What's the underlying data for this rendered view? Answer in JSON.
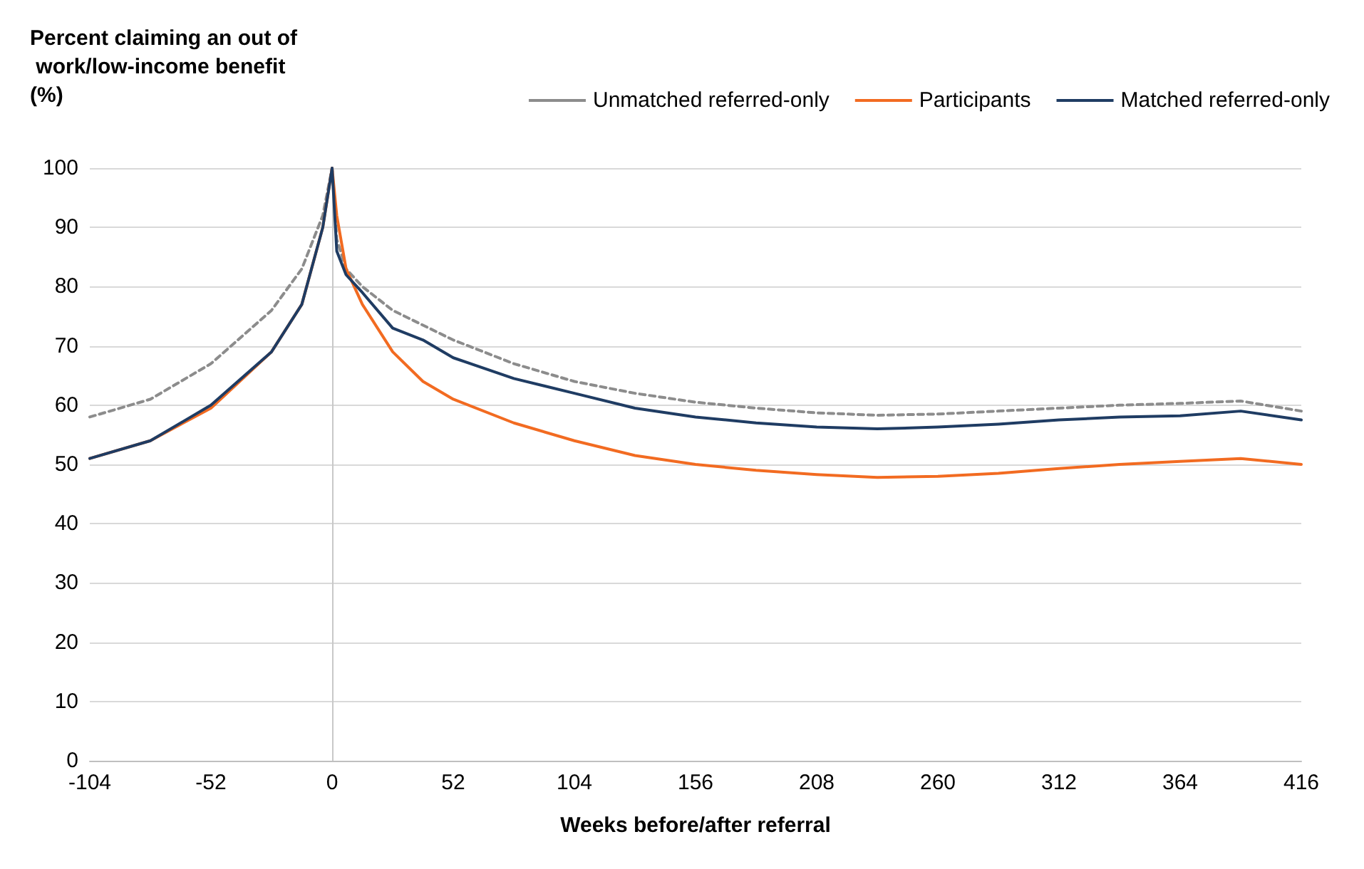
{
  "chart_data": {
    "type": "line",
    "ylabel": "Percent claiming an out of work/low-income benefit (%)",
    "xlabel": "Weeks before/after referral",
    "x": [
      -104,
      -78,
      -52,
      -26,
      -13,
      -4,
      0,
      2,
      6,
      13,
      26,
      39,
      52,
      78,
      104,
      130,
      156,
      182,
      208,
      234,
      260,
      286,
      312,
      338,
      364,
      390,
      416
    ],
    "series": [
      {
        "name": "Unmatched referred-only",
        "color": "#8c8c8c",
        "line_style": "dashed",
        "values": [
          58,
          61,
          67,
          76,
          83,
          92,
          100,
          88,
          83,
          80,
          76,
          73.5,
          71,
          67,
          64,
          62,
          60.5,
          59.5,
          58.7,
          58.3,
          58.5,
          59,
          59.5,
          60,
          60.3,
          60.7,
          59
        ]
      },
      {
        "name": "Participants",
        "color": "#f26b21",
        "values": [
          51,
          54,
          59.5,
          69,
          77,
          90,
          100,
          92,
          83,
          77,
          69,
          64,
          61,
          57,
          54,
          51.5,
          50,
          49,
          48.3,
          47.8,
          48,
          48.5,
          49.3,
          50,
          50.5,
          51,
          50
        ]
      },
      {
        "name": "Matched referred-only",
        "color": "#1f3c63",
        "values": [
          51,
          54,
          60,
          69,
          77,
          90,
          100,
          86,
          82,
          79,
          73,
          71,
          68,
          64.5,
          62,
          59.5,
          58,
          57,
          56.3,
          56,
          56.3,
          56.8,
          57.5,
          58,
          58.2,
          59,
          57.5
        ]
      }
    ],
    "xlim": [
      -104,
      416
    ],
    "xticks": [
      -104,
      -52,
      0,
      52,
      104,
      156,
      208,
      260,
      312,
      364,
      416
    ],
    "ylim": [
      0,
      100
    ],
    "yticks": [
      0,
      10,
      20,
      30,
      40,
      50,
      60,
      70,
      80,
      90,
      100
    ],
    "grid": "y",
    "legend": "top right",
    "marker": "none",
    "ref_lines": [
      {
        "axis": "x",
        "value": 0,
        "label": null,
        "color": "#c8c8c8"
      }
    ]
  }
}
